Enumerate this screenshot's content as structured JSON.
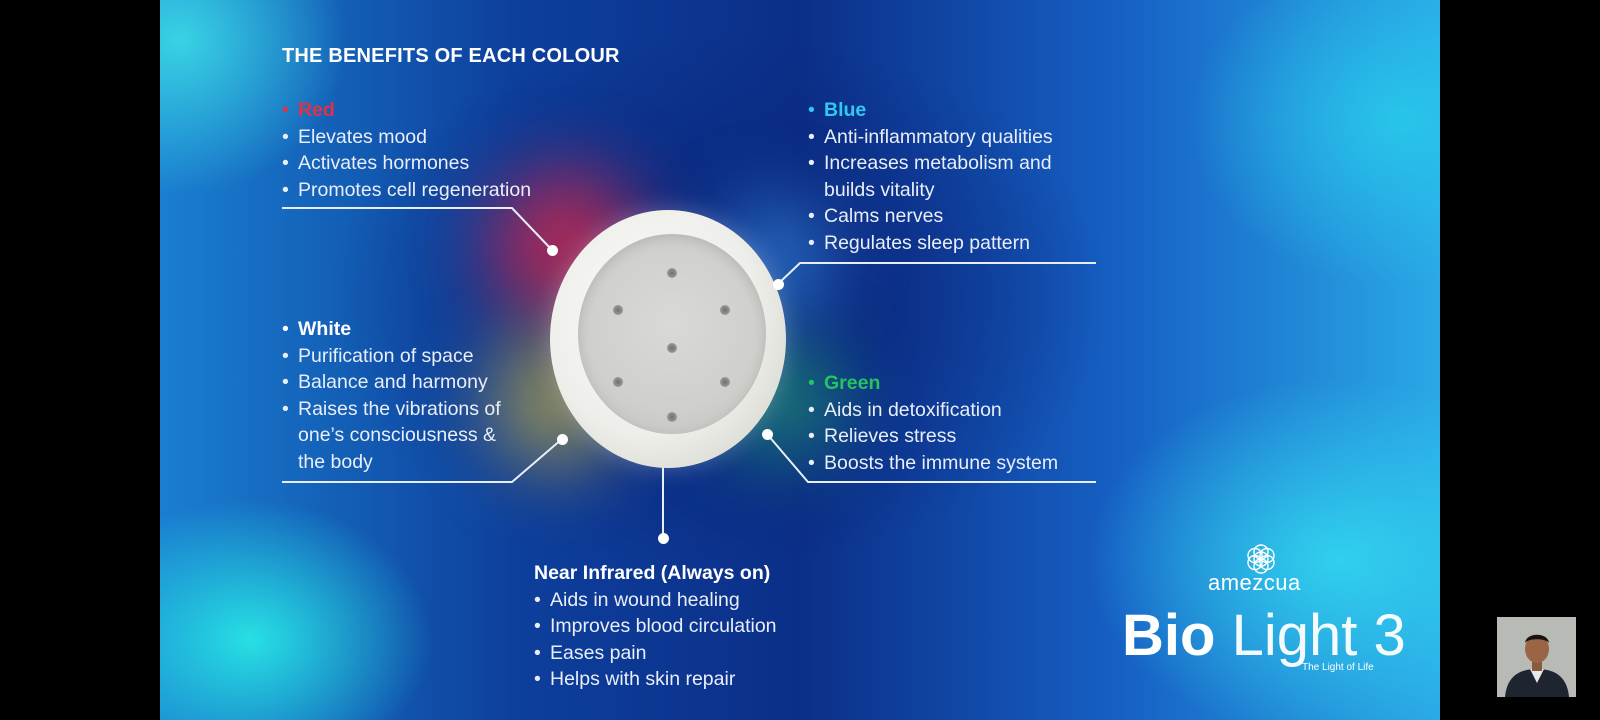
{
  "slide": {
    "title": "THE BENEFITS OF EACH COLOUR",
    "red": {
      "heading": "Red",
      "color": "#e23047",
      "items": [
        "Elevates mood",
        "Activates hormones",
        "Promotes cell regeneration"
      ]
    },
    "blue": {
      "heading": "Blue",
      "color": "#33c8ef",
      "items": [
        "Anti-inflammatory qualities",
        "Increases metabolism and",
        "builds vitality",
        "Calms nerves",
        "Regulates sleep pattern"
      ]
    },
    "white": {
      "heading": "White",
      "color": "#ffffff",
      "items": [
        "Purification of space",
        "Balance and harmony",
        "Raises the vibrations of",
        "one’s consciousness &",
        "the body"
      ]
    },
    "green": {
      "heading": "Green",
      "color": "#24c45f",
      "items": [
        "Aids in detoxification",
        "Relieves stress",
        "Boosts the immune system"
      ]
    },
    "infrared": {
      "heading": "Near Infrared (Always on)",
      "items": [
        "Aids in wound healing",
        "Improves blood circulation",
        "Eases pain",
        "Helps with skin repair"
      ]
    },
    "brand": {
      "logo_text": "amezcua",
      "product_bold": "Bio",
      "product_light": "Light 3",
      "tagline": "The Light of Life",
      "logo_icon": "flower-of-life-icon"
    }
  },
  "overlay": {
    "presenter_video": "presenter-thumbnail"
  }
}
